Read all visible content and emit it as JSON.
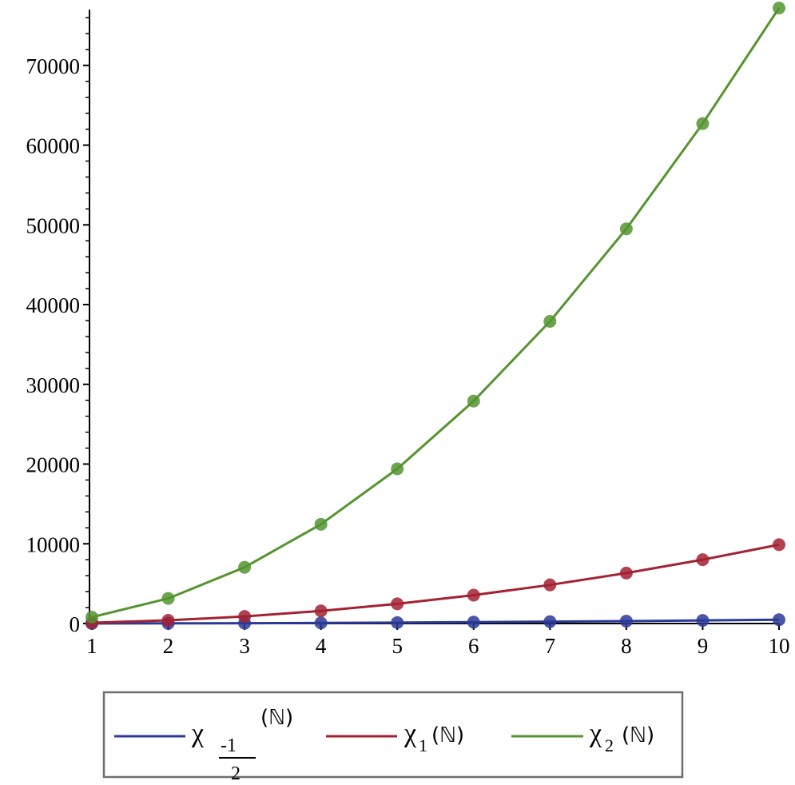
{
  "chart_data": {
    "type": "line",
    "title": "",
    "xlabel": "",
    "ylabel": "",
    "x": [
      1,
      2,
      3,
      4,
      5,
      6,
      7,
      8,
      9,
      10
    ],
    "xlim": [
      1,
      10
    ],
    "ylim": [
      0,
      77000
    ],
    "x_ticks": [
      "1",
      "2",
      "3",
      "4",
      "5",
      "6",
      "7",
      "8",
      "9",
      "10"
    ],
    "y_ticks": [
      "0",
      "10000",
      "20000",
      "30000",
      "40000",
      "50000",
      "60000",
      "70000"
    ],
    "y_tick_values": [
      0,
      10000,
      20000,
      30000,
      40000,
      50000,
      60000,
      70000
    ],
    "grid": false,
    "legend_position": "bottom",
    "series": [
      {
        "legend": {
          "symbol": "χ",
          "sub_num": "-1",
          "sub_den": "2",
          "arg": "(ℕ)"
        },
        "color": "#2b3a97",
        "values": [
          6,
          19,
          42,
          75,
          118,
          170,
          233,
          305,
          387,
          478
        ]
      },
      {
        "legend": {
          "symbol": "χ",
          "sub": "1",
          "arg": "(ℕ)"
        },
        "color": "#a32232",
        "values": [
          100,
          395,
          890,
          1580,
          2470,
          3560,
          4845,
          6330,
          8010,
          9890
        ]
      },
      {
        "legend": {
          "symbol": "χ",
          "sub": "2",
          "arg": "(ℕ)"
        },
        "color": "#559430",
        "values": [
          800,
          3150,
          7050,
          12450,
          19400,
          27900,
          37900,
          49500,
          62700,
          77200
        ]
      }
    ]
  }
}
